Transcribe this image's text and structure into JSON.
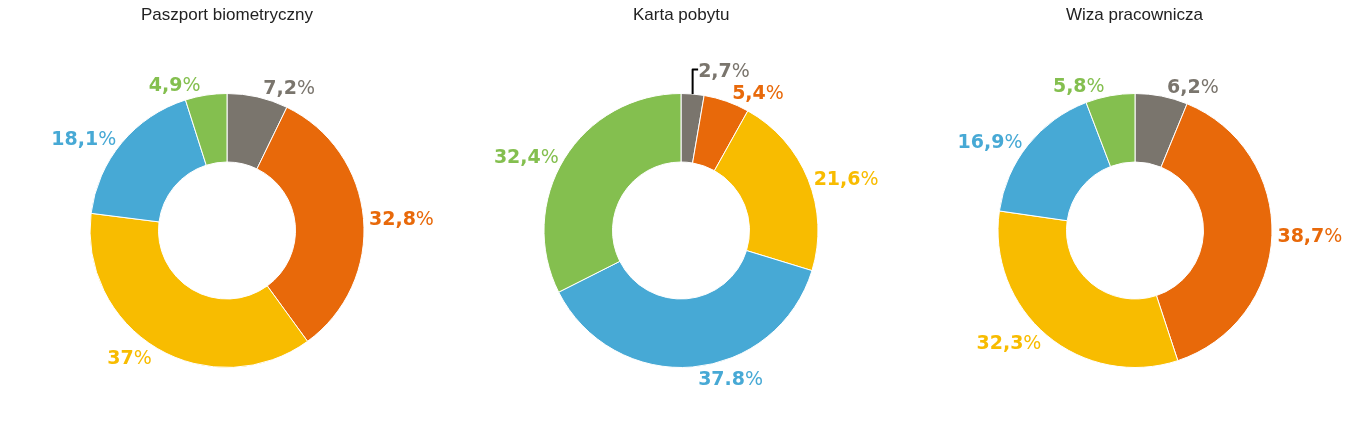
{
  "chart_data": [
    {
      "type": "donut",
      "title": "Paszport biometryczny",
      "categories": [
        null,
        null,
        null,
        null,
        null
      ],
      "values": [
        7.2,
        32.8,
        37,
        18.1,
        4.9
      ],
      "value_labels": [
        "7,2%",
        "32,8%",
        "37%",
        "18,1%",
        "4,9%"
      ],
      "colors": [
        "#7a756d",
        "#e8690a",
        "#f8bc00",
        "#47a9d5",
        "#84bf4f"
      ]
    },
    {
      "type": "donut",
      "title": "Karta pobytu",
      "categories": [
        null,
        null,
        null,
        null,
        null
      ],
      "values": [
        2.7,
        5.4,
        21.6,
        37.8,
        32.4
      ],
      "value_labels": [
        "2,7%",
        "5,4%",
        "21,6%",
        "37.8%",
        "32,4%"
      ],
      "colors": [
        "#7a756d",
        "#e8690a",
        "#f8bc00",
        "#47a9d5",
        "#84bf4f"
      ]
    },
    {
      "type": "donut",
      "title": "Wiza pracownicza",
      "categories": [
        null,
        null,
        null,
        null,
        null
      ],
      "values": [
        6.2,
        38.7,
        32.3,
        16.9,
        5.8
      ],
      "value_labels": [
        "6,2%",
        "38,7%",
        "32,3%",
        "16,9%",
        "5,8%"
      ],
      "colors": [
        "#7a756d",
        "#e8690a",
        "#f8bc00",
        "#47a9d5",
        "#84bf4f"
      ]
    }
  ]
}
